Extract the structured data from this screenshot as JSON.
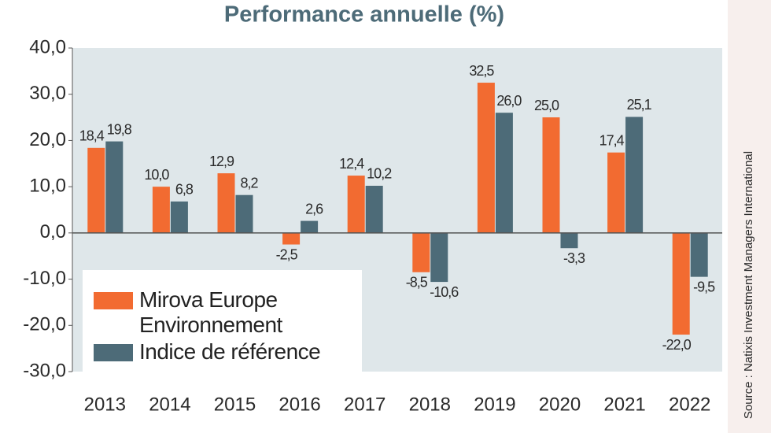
{
  "chart_data": {
    "type": "bar",
    "title": "Performance annuelle (%)",
    "source": "Source : Natixis Investment Managers International",
    "categories": [
      "2013",
      "2014",
      "2015",
      "2016",
      "2017",
      "2018",
      "2019",
      "2020",
      "2021",
      "2022"
    ],
    "series": [
      {
        "name": "Mirova Europe Environnement",
        "color": "#f26b31",
        "values": [
          18.4,
          10.0,
          12.9,
          -2.5,
          12.4,
          -8.5,
          32.5,
          25.0,
          17.4,
          -22.0
        ],
        "value_labels": [
          "18,4",
          "10,0",
          "12,9",
          "-2,5",
          "12,4",
          "-8,5",
          "32,5",
          "25,0",
          "17,4",
          "-22,0"
        ]
      },
      {
        "name": "Indice de référence",
        "color": "#4d6b78",
        "values": [
          19.8,
          6.8,
          8.2,
          2.6,
          10.2,
          -10.6,
          26.0,
          -3.3,
          25.1,
          -9.5
        ],
        "value_labels": [
          "19,8",
          "6,8",
          "8,2",
          "2,6",
          "10,2",
          "-10,6",
          "26,0",
          "-3,3",
          "25,1",
          "-9,5"
        ]
      }
    ],
    "ylim": [
      -30,
      40
    ],
    "yticks": [
      {
        "value": -30,
        "label": "-30,0"
      },
      {
        "value": -20,
        "label": "-20,0"
      },
      {
        "value": -10,
        "label": "-10,0"
      },
      {
        "value": 0,
        "label": "0,0"
      },
      {
        "value": 10,
        "label": "10,0"
      },
      {
        "value": 20,
        "label": "20,0"
      },
      {
        "value": 30,
        "label": "30,0"
      },
      {
        "value": 40,
        "label": "40,0"
      }
    ],
    "legend": "lower left",
    "grid": false
  }
}
